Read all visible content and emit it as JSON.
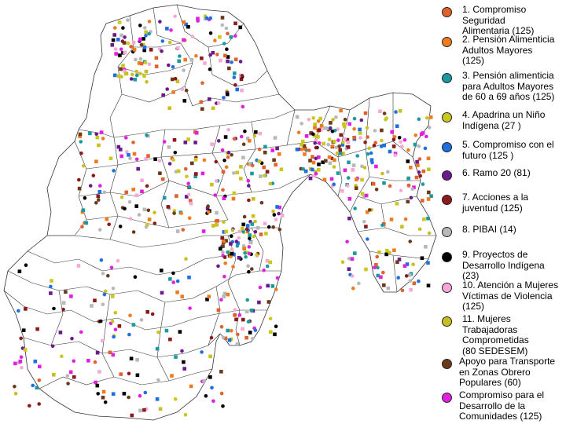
{
  "map": {
    "legend": [
      {
        "id": "l1",
        "label": "1. Compromiso\nSeguridad\nAlimentaria (125)",
        "color": "#e0602e"
      },
      {
        "id": "l2",
        "label": "2. Pensión Alimenticia\nAdultos Mayores\n(125)",
        "color": "#f07a20"
      },
      {
        "id": "l3",
        "label": "3. Pensión alimenticia\npara Adultos Mayores\nde 60 a 69 años (125)",
        "color": "#1a9aa0"
      },
      {
        "id": "l4",
        "label": "4. Apadrina un Niño\nIndígena (27 )",
        "color": "#c8c820"
      },
      {
        "id": "l5",
        "label": "5. Compromiso con el\nfuturo (125 )",
        "color": "#1e6fe0"
      },
      {
        "id": "l6",
        "label": "6. Ramo 20 (81)",
        "color": "#6a1a8a"
      },
      {
        "id": "l7",
        "label": "7. Acciones a la\njuventud (125)",
        "color": "#8b1a1a"
      },
      {
        "id": "l8",
        "label": "8. PIBAI (14)",
        "color": "#b8b8b8"
      },
      {
        "id": "l9",
        "label": "9. Proyectos de\nDesarrollo Indígena\n(23)",
        "color": "#000000"
      },
      {
        "id": "l10",
        "label": "10. Atención a Mujeres\nVíctimas de Violencia\n(125)",
        "color": "#f7a8d8"
      },
      {
        "id": "l11",
        "label": "11. Mujeres\nTrabajadoras\nComprometidas\n(80 SEDESEM)",
        "color": "#c8c020"
      },
      {
        "id": "l12",
        "label": "Apoyo para Transporte\nen Zonas Obrero\nPopulares (60)",
        "color": "#6b3a1a"
      },
      {
        "id": "l13",
        "label": "Compromiso para el\nDesarrollo de la\nComunidades (125)",
        "color": "#e020e0"
      }
    ]
  }
}
